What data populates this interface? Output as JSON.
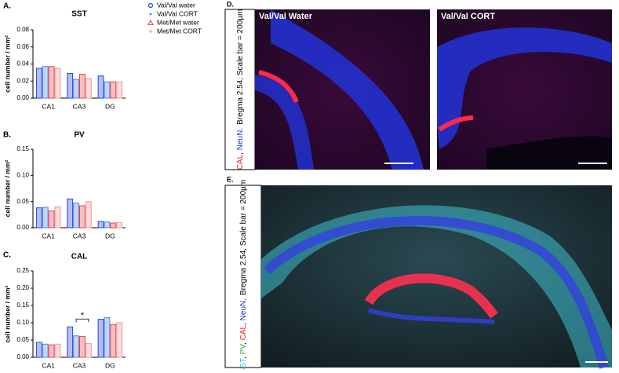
{
  "chart_data": [
    {
      "type": "bar",
      "panel_label": "A.",
      "title": "SST",
      "y_label": "cell number / mm²",
      "categories": [
        "CA1",
        "CA3",
        "DG"
      ],
      "series": [
        {
          "name": "Val/Val water",
          "color": "#2448d8",
          "marker": "circle",
          "values": [
            0.035,
            0.029,
            0.026
          ]
        },
        {
          "name": "Val/Val CORT",
          "color": "#4f86e8",
          "marker": "dot",
          "values": [
            0.037,
            0.022,
            0.019
          ]
        },
        {
          "name": "Met/Met water",
          "color": "#e8474a",
          "marker": "triangle",
          "values": [
            0.037,
            0.028,
            0.019
          ]
        },
        {
          "name": "Met/Met CORT",
          "color": "#f29a9a",
          "marker": "plus",
          "values": [
            0.035,
            0.023,
            0.019
          ]
        }
      ],
      "ylim": [
        0,
        0.08
      ],
      "yticks": [
        {
          "value": 0,
          "label": "0.00"
        },
        0.02,
        0.04,
        0.06,
        0.08
      ]
    },
    {
      "type": "bar",
      "panel_label": "B.",
      "title": "PV",
      "y_label": "cell number / mm²",
      "categories": [
        "CA1",
        "CA3",
        "DG"
      ],
      "series": [
        {
          "color": "#2448d8",
          "values": [
            0.038,
            0.055,
            0.012
          ]
        },
        {
          "color": "#4f86e8",
          "values": [
            0.039,
            0.047,
            0.011
          ]
        },
        {
          "color": "#e8474a",
          "values": [
            0.032,
            0.042,
            0.009
          ]
        },
        {
          "color": "#f29a9a",
          "values": [
            0.04,
            0.05,
            0.01
          ]
        }
      ],
      "ylim": [
        0,
        0.15
      ],
      "yticks": [
        {
          "value": 0,
          "label": "0.00"
        },
        0.05,
        {
          "value": 0.1,
          "label": "0.10"
        },
        0.15
      ]
    },
    {
      "type": "bar",
      "panel_label": "C.",
      "title": "CAL",
      "y_label": "cell number / mm²",
      "categories": [
        "CA1",
        "CA3",
        "DG"
      ],
      "series": [
        {
          "color": "#2448d8",
          "values": [
            0.043,
            0.088,
            0.11
          ]
        },
        {
          "color": "#4f86e8",
          "values": [
            0.038,
            0.062,
            0.115
          ]
        },
        {
          "color": "#e8474a",
          "values": [
            0.036,
            0.06,
            0.095
          ]
        },
        {
          "color": "#f29a9a",
          "values": [
            0.038,
            0.04,
            0.1
          ]
        }
      ],
      "ylim": [
        0,
        0.25
      ],
      "yticks": [
        {
          "value": 0,
          "label": "0.00"
        },
        0.05,
        {
          "value": 0.1,
          "label": "0.10"
        },
        0.15,
        {
          "value": 0.2,
          "label": "0.20"
        },
        0.25
      ],
      "annotations": [
        "*"
      ]
    }
  ],
  "images": {
    "d": {
      "panel_label": "D.",
      "stain_parts": [
        "CAL",
        ", ",
        "NeuN",
        "."
      ],
      "caption": "Bregma 2.54, Scale bar = 200µm",
      "titles": [
        "Val/Val Water",
        "Val/Val CORT"
      ]
    },
    "e": {
      "panel_label": "E.",
      "stain_parts": [
        "SST",
        ", ",
        "PV",
        ", ",
        "CAL",
        ", ",
        "NeuN",
        "."
      ],
      "caption": "Bregma 2.54, Scale bar = 200µm"
    }
  }
}
